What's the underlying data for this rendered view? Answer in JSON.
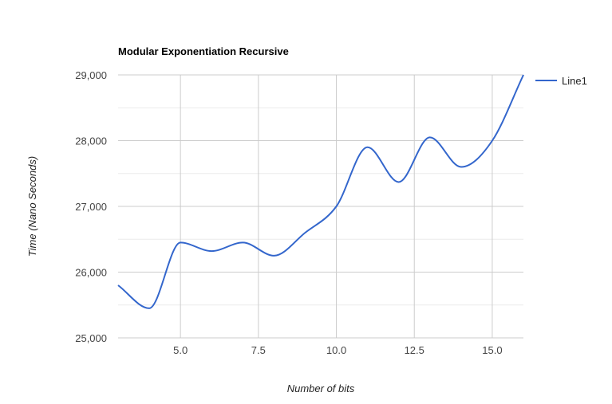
{
  "chart_data": {
    "type": "line",
    "title": "Modular Exponentiation Recursive",
    "xlabel": "Number of bits",
    "ylabel": "Time (Nano Seconds)",
    "xlim": [
      3,
      16
    ],
    "ylim": [
      25000,
      29000
    ],
    "x_ticks": [
      5,
      7.5,
      10,
      12.5,
      15
    ],
    "x_tick_labels": [
      "5.0",
      "7.5",
      "10.0",
      "12.5",
      "15.0"
    ],
    "y_ticks": [
      25000,
      26000,
      27000,
      28000,
      29000
    ],
    "y_tick_labels": [
      "25,000",
      "26,000",
      "27,000",
      "28,000",
      "29,000"
    ],
    "y_minor_gridlines": [
      25500,
      26500,
      27500,
      28500
    ],
    "grid": true,
    "curve": "smooth",
    "legend_position": "right",
    "series": [
      {
        "name": "Line1",
        "color": "#3366cc",
        "x": [
          3,
          4,
          5,
          6,
          7,
          8,
          9,
          10,
          11,
          12,
          13,
          14,
          15,
          16
        ],
        "values": [
          25800,
          25450,
          26450,
          26320,
          26450,
          26250,
          26600,
          27000,
          27900,
          27370,
          28050,
          27600,
          28000,
          29000
        ]
      }
    ]
  }
}
